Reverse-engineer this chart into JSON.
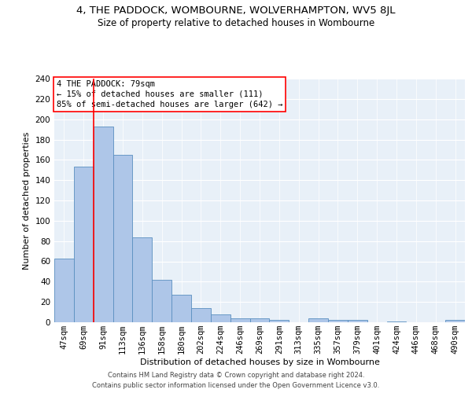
{
  "title": "4, THE PADDOCK, WOMBOURNE, WOLVERHAMPTON, WV5 8JL",
  "subtitle": "Size of property relative to detached houses in Wombourne",
  "xlabel": "Distribution of detached houses by size in Wombourne",
  "ylabel": "Number of detached properties",
  "footer_line1": "Contains HM Land Registry data © Crown copyright and database right 2024.",
  "footer_line2": "Contains public sector information licensed under the Open Government Licence v3.0.",
  "annotation_line1": "4 THE PADDOCK: 79sqm",
  "annotation_line2": "← 15% of detached houses are smaller (111)",
  "annotation_line3": "85% of semi-detached houses are larger (642) →",
  "bar_categories": [
    "47sqm",
    "69sqm",
    "91sqm",
    "113sqm",
    "136sqm",
    "158sqm",
    "180sqm",
    "202sqm",
    "224sqm",
    "246sqm",
    "269sqm",
    "291sqm",
    "313sqm",
    "335sqm",
    "357sqm",
    "379sqm",
    "401sqm",
    "424sqm",
    "446sqm",
    "468sqm",
    "490sqm"
  ],
  "bar_values": [
    63,
    153,
    193,
    165,
    84,
    42,
    27,
    14,
    8,
    4,
    4,
    2,
    0,
    4,
    2,
    2,
    0,
    1,
    0,
    0,
    2
  ],
  "bar_color": "#aec6e8",
  "bar_edge_color": "#5a8fc0",
  "red_line_x": 1.5,
  "ylim": [
    0,
    240
  ],
  "yticks": [
    0,
    20,
    40,
    60,
    80,
    100,
    120,
    140,
    160,
    180,
    200,
    220,
    240
  ],
  "bg_color": "#e8f0f8",
  "title_fontsize": 9.5,
  "subtitle_fontsize": 8.5,
  "axis_label_fontsize": 8,
  "tick_fontsize": 7.5,
  "annotation_fontsize": 7.5,
  "footer_fontsize": 6
}
